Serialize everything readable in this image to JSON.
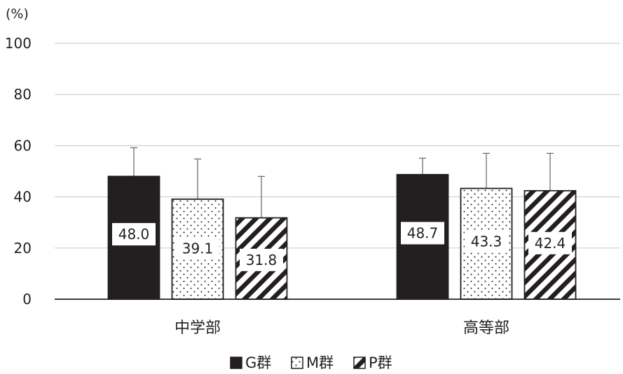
{
  "chart_data": {
    "type": "bar",
    "y_unit": "(%)",
    "ylim": [
      0,
      100
    ],
    "yticks": [
      0,
      20,
      40,
      60,
      80,
      100
    ],
    "grid": true,
    "legend_position": "bottom",
    "categories": [
      "中学部",
      "高等部"
    ],
    "series": [
      {
        "name": "G群",
        "legend_label": "G群",
        "pattern": "solid",
        "color": "#231f20",
        "values": [
          48.0,
          48.7
        ],
        "error_upper": [
          59.2,
          55.1
        ],
        "labels": [
          "48.0",
          "48.7"
        ]
      },
      {
        "name": "M群",
        "legend_label": "M群",
        "pattern": "dots",
        "color": "#231f20",
        "values": [
          39.1,
          43.3
        ],
        "error_upper": [
          54.8,
          57.0
        ],
        "labels": [
          "39.1",
          "43.3"
        ]
      },
      {
        "name": "P群",
        "legend_label": "P群",
        "pattern": "hatch",
        "color": "#231f20",
        "values": [
          31.8,
          42.4
        ],
        "error_upper": [
          48.0,
          57.0
        ],
        "labels": [
          "31.8",
          "42.4"
        ]
      }
    ]
  }
}
